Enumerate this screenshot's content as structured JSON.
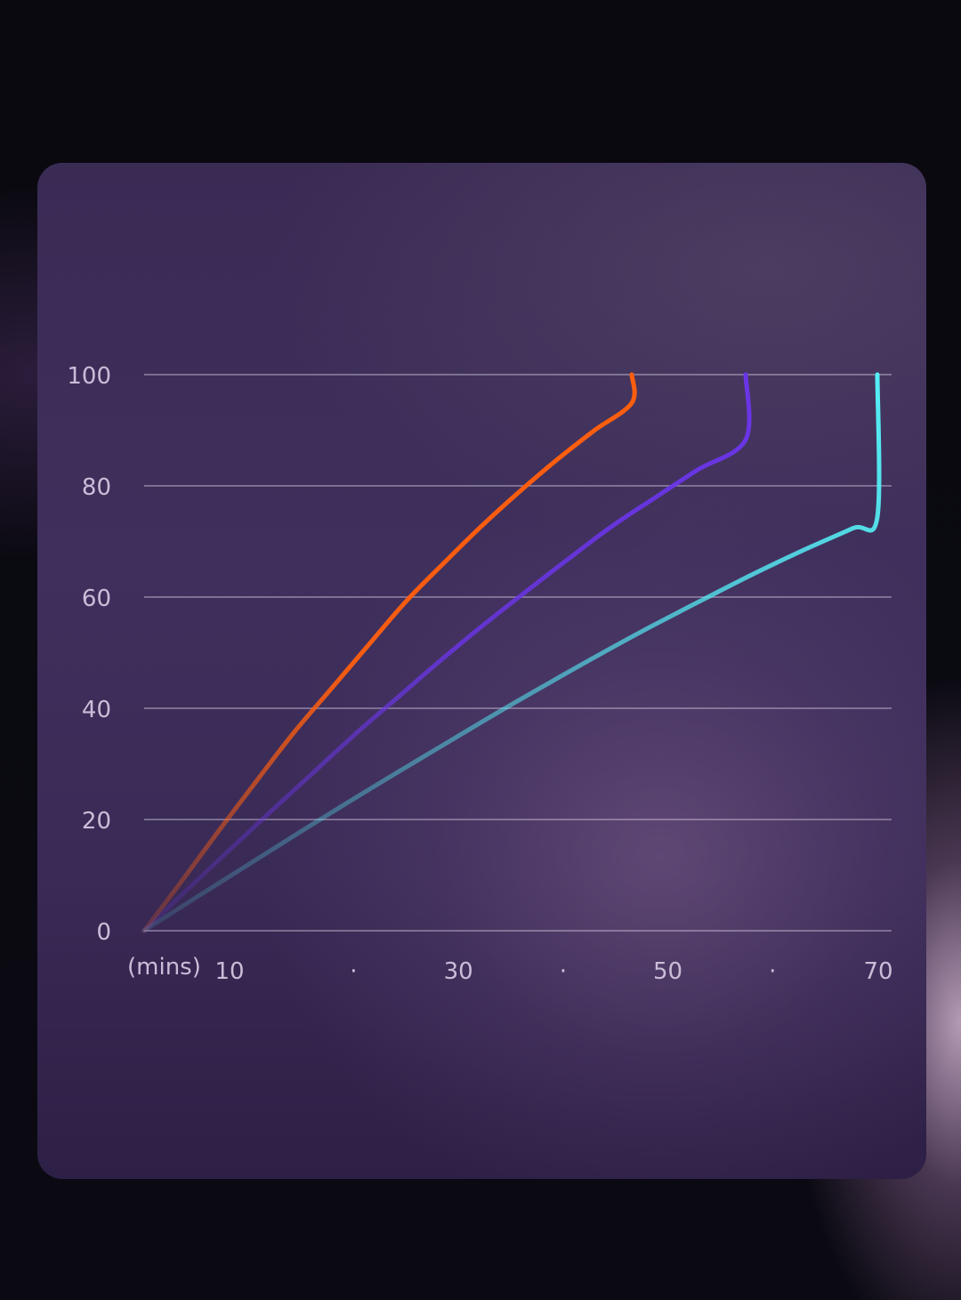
{
  "chart_data": {
    "type": "line",
    "title": "",
    "xlabel": "(mins)",
    "ylabel": "",
    "xlim": [
      0,
      70
    ],
    "ylim": [
      0,
      100
    ],
    "grid": true,
    "yticks": [
      {
        "value": 0,
        "label": "0"
      },
      {
        "value": 20,
        "label": "20"
      },
      {
        "value": 40,
        "label": "40"
      },
      {
        "value": 60,
        "label": "60"
      },
      {
        "value": 80,
        "label": "80"
      },
      {
        "value": 100,
        "label": "100"
      }
    ],
    "xticks": [
      {
        "value": 10,
        "label": "10"
      },
      {
        "value": 20,
        "label": "·"
      },
      {
        "value": 30,
        "label": "30"
      },
      {
        "value": 40,
        "label": "·"
      },
      {
        "value": 50,
        "label": "50"
      },
      {
        "value": 60,
        "label": "·"
      },
      {
        "value": 70,
        "label": "70"
      }
    ],
    "series": [
      {
        "color": "#ff5e0e",
        "x": [
          0,
          3.7,
          7.3,
          11,
          14.6,
          18.3,
          22,
          25.6,
          29.3,
          32.9,
          36.6,
          40.3,
          43.9,
          47.6
        ],
        "y": [
          0,
          9,
          18,
          27,
          35.6,
          43.6,
          51.6,
          59.3,
          66.2,
          72.7,
          78.9,
          84.7,
          89.9,
          94.9
        ]
      },
      {
        "color": "#6a35e6",
        "x": [
          0,
          4.1,
          8.2,
          12.3,
          16.4,
          20.5,
          24.6,
          28.7,
          32.8,
          36.9,
          41,
          45,
          49.2,
          53.3,
          58
        ],
        "y": [
          0,
          7.3,
          14.5,
          21.6,
          28.6,
          35.6,
          42.2,
          48.8,
          55.1,
          61.1,
          67,
          72.6,
          77.8,
          82.8,
          88.3
        ]
      },
      {
        "color": "#55eef6",
        "x": [
          0,
          4.8,
          9.7,
          14.5,
          19.3,
          24.2,
          29,
          33.9,
          38.7,
          43.5,
          48.4,
          53.2,
          58,
          62.9,
          67.7,
          70
        ],
        "y": [
          0,
          5.8,
          11.6,
          17.3,
          22.9,
          28.5,
          33.9,
          39.4,
          44.6,
          49.7,
          54.7,
          59.4,
          64,
          68.4,
          72.4,
          74.4
        ]
      }
    ],
    "line_endpoints_y": [
      100,
      100,
      100
    ]
  }
}
